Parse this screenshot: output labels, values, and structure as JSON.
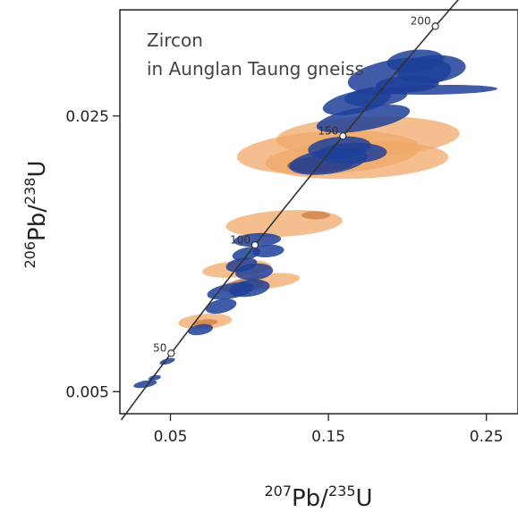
{
  "chart_data": {
    "type": "scatter",
    "title": "",
    "annotation_lines": [
      "Zircon",
      "in Aunglan Taung gneiss"
    ],
    "xlabel": {
      "sup1": "207",
      "base1": "Pb/",
      "sup2": "235",
      "base2": "U"
    },
    "ylabel": {
      "sup1": "206",
      "base1": "Pb/",
      "sup2": "238",
      "base2": "U"
    },
    "x_ticks": [
      {
        "value": 0.05,
        "label": "0.05"
      },
      {
        "value": 0.15,
        "label": "0.15"
      },
      {
        "value": 0.25,
        "label": "0.25"
      }
    ],
    "y_ticks": [
      {
        "value": 0.005,
        "label": "0.005"
      },
      {
        "value": 0.025,
        "label": "0.025"
      }
    ],
    "xlim": [
      0.018,
      0.27
    ],
    "ylim": [
      0.0034,
      0.0327
    ],
    "grid": false,
    "concordia": {
      "color": "#333333",
      "ages": [
        {
          "age": 50,
          "label": "50"
        },
        {
          "age": 100,
          "label": "100"
        },
        {
          "age": 150,
          "label": "150"
        },
        {
          "age": 200,
          "label": "200"
        }
      ]
    },
    "colors": {
      "orange": "#f0a868",
      "blue": "#1f3f99"
    },
    "series": [
      {
        "color": "#f0a868",
        "ellipses": [
          {
            "x": 0.15,
            "y": 0.02235,
            "rx": 0.058,
            "ry": 0.00155,
            "angle": 3
          },
          {
            "x": 0.175,
            "y": 0.0235,
            "rx": 0.058,
            "ry": 0.00145,
            "angle": 2
          },
          {
            "x": 0.168,
            "y": 0.0218,
            "rx": 0.058,
            "ry": 0.00135,
            "angle": 2
          },
          {
            "x": 0.122,
            "y": 0.0172,
            "rx": 0.037,
            "ry": 0.00095,
            "angle": 3
          },
          {
            "x": 0.092,
            "y": 0.0139,
            "rx": 0.022,
            "ry": 0.0006,
            "angle": 5
          },
          {
            "x": 0.11,
            "y": 0.013,
            "rx": 0.022,
            "ry": 0.00055,
            "angle": 6
          },
          {
            "x": 0.072,
            "y": 0.0101,
            "rx": 0.017,
            "ry": 0.00055,
            "angle": 4
          }
        ]
      },
      {
        "color": "#1f3f99",
        "ellipses": [
          {
            "x": 0.034,
            "y": 0.00555,
            "rx": 0.0075,
            "ry": 0.00025,
            "angle": 10
          },
          {
            "x": 0.04,
            "y": 0.006,
            "rx": 0.004,
            "ry": 0.00018,
            "angle": 10
          },
          {
            "x": 0.048,
            "y": 0.0072,
            "rx": 0.005,
            "ry": 0.0002,
            "angle": 15
          },
          {
            "x": 0.069,
            "y": 0.0095,
            "rx": 0.008,
            "ry": 0.00038,
            "angle": 10
          },
          {
            "x": 0.082,
            "y": 0.0112,
            "rx": 0.01,
            "ry": 0.0005,
            "angle": 12
          },
          {
            "x": 0.088,
            "y": 0.0123,
            "rx": 0.015,
            "ry": 0.00055,
            "angle": 10
          },
          {
            "x": 0.1,
            "y": 0.0125,
            "rx": 0.013,
            "ry": 0.0006,
            "angle": 8
          },
          {
            "x": 0.095,
            "y": 0.0142,
            "rx": 0.01,
            "ry": 0.0005,
            "angle": 10
          },
          {
            "x": 0.103,
            "y": 0.0137,
            "rx": 0.012,
            "ry": 0.0006,
            "angle": 5
          },
          {
            "x": 0.098,
            "y": 0.015,
            "rx": 0.009,
            "ry": 0.00045,
            "angle": 12
          },
          {
            "x": 0.112,
            "y": 0.0152,
            "rx": 0.01,
            "ry": 0.00045,
            "angle": 5
          },
          {
            "x": 0.105,
            "y": 0.016,
            "rx": 0.015,
            "ry": 0.0005,
            "angle": 3
          },
          {
            "x": 0.15,
            "y": 0.0217,
            "rx": 0.025,
            "ry": 0.0009,
            "angle": 8
          },
          {
            "x": 0.157,
            "y": 0.0227,
            "rx": 0.02,
            "ry": 0.0008,
            "angle": 5
          },
          {
            "x": 0.165,
            "y": 0.0223,
            "rx": 0.022,
            "ry": 0.00075,
            "angle": 2
          },
          {
            "x": 0.172,
            "y": 0.0248,
            "rx": 0.03,
            "ry": 0.00085,
            "angle": 10
          },
          {
            "x": 0.168,
            "y": 0.026,
            "rx": 0.022,
            "ry": 0.0008,
            "angle": 12
          },
          {
            "x": 0.18,
            "y": 0.0264,
            "rx": 0.02,
            "ry": 0.0007,
            "angle": 5
          },
          {
            "x": 0.195,
            "y": 0.0279,
            "rx": 0.033,
            "ry": 0.00125,
            "angle": 8
          },
          {
            "x": 0.215,
            "y": 0.0284,
            "rx": 0.022,
            "ry": 0.001,
            "angle": 5
          },
          {
            "x": 0.205,
            "y": 0.029,
            "rx": 0.018,
            "ry": 0.0008,
            "angle": 5
          },
          {
            "x": 0.218,
            "y": 0.0269,
            "rx": 0.039,
            "ry": 0.00035,
            "angle": 1
          },
          {
            "x": 0.2,
            "y": 0.0273,
            "rx": 0.02,
            "ry": 0.0006,
            "angle": 2
          }
        ]
      }
    ],
    "overlaps": [
      {
        "x": 0.145,
        "y": 0.0215,
        "rx": 0.021,
        "ry": 0.0006,
        "angle": 3,
        "color": "#6b3a1c",
        "opacity": 0.6
      },
      {
        "x": 0.142,
        "y": 0.0178,
        "rx": 0.009,
        "ry": 0.0003,
        "angle": 0,
        "color": "#c07030",
        "opacity": 0.6
      },
      {
        "x": 0.096,
        "y": 0.0127,
        "rx": 0.014,
        "ry": 0.00045,
        "angle": 8,
        "color": "#8a5a3a",
        "opacity": 0.5
      },
      {
        "x": 0.072,
        "y": 0.01,
        "rx": 0.008,
        "ry": 0.00025,
        "angle": 5,
        "color": "#c07030",
        "opacity": 0.6
      }
    ]
  }
}
